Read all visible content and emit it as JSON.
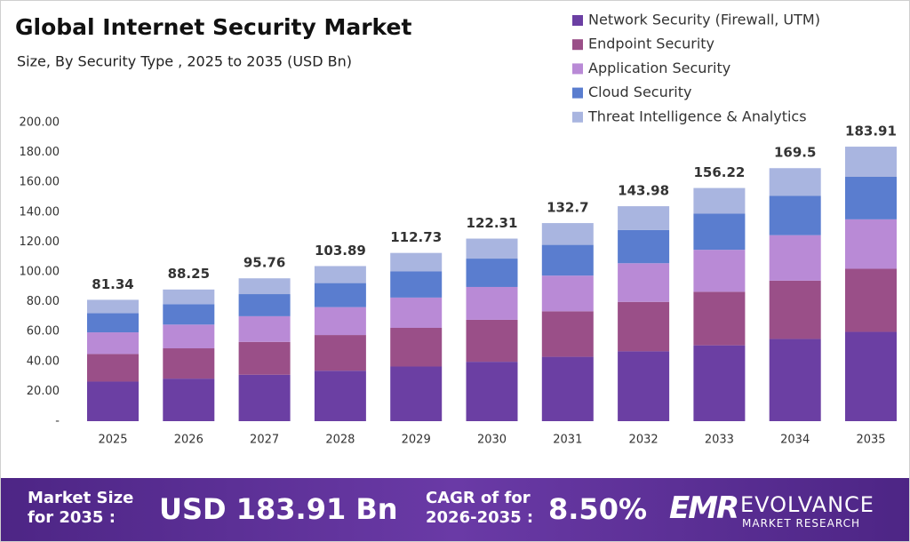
{
  "chart_data": {
    "type": "stacked_bar",
    "title": "Global Internet Security Market",
    "subtitle": "Size, By Security Type , 2025 to 2035 (USD Bn)",
    "categories": [
      "2025",
      "2026",
      "2027",
      "2028",
      "2029",
      "2030",
      "2031",
      "2032",
      "2033",
      "2034",
      "2035"
    ],
    "series": [
      {
        "name": "Network Security (Firewall, UTM)",
        "color": "#6b3fa3",
        "values": [
          26.5,
          28.5,
          31.1,
          33.8,
          36.6,
          39.8,
          43.1,
          46.8,
          50.8,
          55.1,
          59.8
        ]
      },
      {
        "name": "Endpoint Security",
        "color": "#9a4f88",
        "values": [
          18.5,
          20.3,
          22.0,
          23.9,
          25.9,
          28.1,
          30.5,
          33.1,
          35.9,
          39.0,
          42.3
        ]
      },
      {
        "name": "Application Security",
        "color": "#b98ad6",
        "values": [
          14.5,
          15.9,
          17.2,
          18.7,
          20.3,
          22.0,
          23.9,
          25.9,
          28.1,
          30.5,
          33.1
        ]
      },
      {
        "name": "Cloud Security",
        "color": "#5a7dcf",
        "values": [
          12.8,
          13.7,
          14.8,
          16.1,
          17.5,
          19.0,
          20.6,
          22.3,
          24.2,
          26.3,
          28.5
        ]
      },
      {
        "name": "Threat Intelligence & Analytics",
        "color": "#a9b5e0",
        "values": [
          9.0,
          9.8,
          10.6,
          11.4,
          12.4,
          13.4,
          14.6,
          15.9,
          17.2,
          18.6,
          20.2
        ]
      }
    ],
    "totals": [
      81.34,
      88.25,
      95.76,
      103.89,
      112.73,
      122.31,
      132.7,
      143.98,
      156.22,
      169.5,
      183.91
    ],
    "ylim": [
      0,
      200
    ],
    "yticks": [
      {
        "value": 0,
        "label": "-"
      },
      {
        "value": 20,
        "label": "20.00"
      },
      {
        "value": 40,
        "label": "40.00"
      },
      {
        "value": 60,
        "label": "60.00"
      },
      {
        "value": 80,
        "label": "80.00"
      },
      {
        "value": 100,
        "label": "100.00"
      },
      {
        "value": 120,
        "label": "120.00"
      },
      {
        "value": 140,
        "label": "140.00"
      },
      {
        "value": 160,
        "label": "160.00"
      },
      {
        "value": 180,
        "label": "180.00"
      },
      {
        "value": 200,
        "label": "200.00"
      }
    ],
    "grid": false
  },
  "footer": {
    "market_size_label": "Market Size for 2035 :",
    "market_size_value": "USD 183.91 Bn",
    "cagr_label": "CAGR of for 2026-2035 :",
    "cagr_value": "8.50%",
    "logo_mark": "EMR",
    "logo_name": "EVOLVANCE",
    "logo_sub": "MARKET RESEARCH"
  }
}
